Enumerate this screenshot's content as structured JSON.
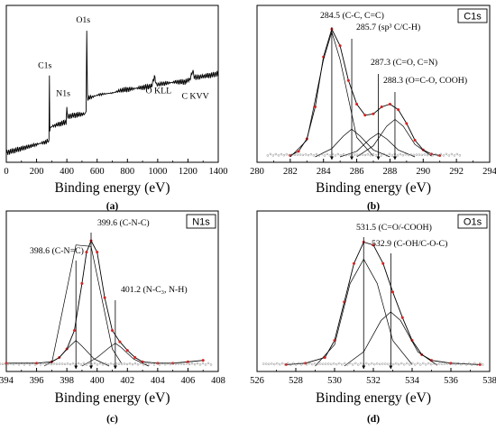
{
  "chart_data": [
    {
      "type": "line",
      "panel_label": "(a)",
      "xlabel": "Binding energy (eV)",
      "xlim": [
        0,
        1400
      ],
      "xticks": [
        0,
        200,
        400,
        600,
        800,
        1000,
        1200,
        1400
      ],
      "ylim": [
        0,
        100
      ],
      "annotations": [
        {
          "text": "C1s",
          "x": 284.5,
          "y": 60
        },
        {
          "text": "N1s",
          "x": 399.6,
          "y": 40
        },
        {
          "text": "O1s",
          "x": 531.5,
          "y": 93
        },
        {
          "text": "O KLL",
          "x": 980,
          "y": 42
        },
        {
          "text": "C KVV",
          "x": 1230,
          "y": 38
        }
      ],
      "series": [
        {
          "values": [
            [
              0,
              3
            ],
            [
              100,
              6
            ],
            [
              200,
              9
            ],
            [
              270,
              11
            ],
            [
              282,
              12
            ],
            [
              284.5,
              58
            ],
            [
              287,
              20
            ],
            [
              300,
              22
            ],
            [
              360,
              24
            ],
            [
              395,
              25
            ],
            [
              399.6,
              36
            ],
            [
              403,
              29
            ],
            [
              450,
              30
            ],
            [
              520,
              31
            ],
            [
              527,
              33
            ],
            [
              531.5,
              90
            ],
            [
              536,
              42
            ],
            [
              560,
              43
            ],
            [
              620,
              45
            ],
            [
              700,
              46
            ],
            [
              760,
              48
            ],
            [
              830,
              49
            ],
            [
              900,
              50
            ],
            [
              960,
              51
            ],
            [
              978,
              58
            ],
            [
              992,
              52
            ],
            [
              1050,
              53
            ],
            [
              1120,
              54
            ],
            [
              1180,
              54
            ],
            [
              1215,
              56
            ],
            [
              1230,
              62
            ],
            [
              1245,
              57
            ],
            [
              1300,
              58
            ],
            [
              1360,
              59
            ],
            [
              1400,
              60
            ]
          ]
        }
      ]
    },
    {
      "type": "line",
      "panel_label": "(b)",
      "badge": "C1s",
      "xlabel": "Binding energy (eV)",
      "xlim": [
        280,
        294
      ],
      "xticks": [
        280,
        282,
        284,
        286,
        288,
        290,
        292,
        294
      ],
      "ylim": [
        0,
        100
      ],
      "annotations": [
        {
          "text": "284.5 (C-C, C=C)",
          "x": 284.5
        },
        {
          "text": "285.7 (sp³ C/C-H)",
          "x": 285.7
        },
        {
          "text": "287.3 (C=O, C=N)",
          "x": 287.3
        },
        {
          "text": "288.3 (O=C-O, COOH)",
          "x": 288.3
        }
      ],
      "series": [
        {
          "values": [
            [
              282,
              1
            ],
            [
              282.5,
              4
            ],
            [
              283,
              13
            ],
            [
              283.5,
              36
            ],
            [
              284,
              72
            ],
            [
              284.5,
              92
            ],
            [
              285,
              80
            ],
            [
              285.5,
              55
            ],
            [
              286,
              38
            ],
            [
              286.5,
              30
            ],
            [
              287,
              31
            ],
            [
              287.5,
              36
            ],
            [
              288,
              38
            ],
            [
              288.5,
              34
            ],
            [
              289,
              24
            ],
            [
              289.5,
              12
            ],
            [
              290,
              5
            ],
            [
              290.5,
              2
            ],
            [
              291,
              1
            ]
          ]
        },
        {
          "values": [
            [
              282,
              0
            ],
            [
              283,
              12
            ],
            [
              284,
              70
            ],
            [
              284.5,
              90
            ],
            [
              285,
              70
            ],
            [
              286,
              14
            ],
            [
              287,
              0.5
            ]
          ]
        },
        {
          "values": [
            [
              283.5,
              0
            ],
            [
              284.5,
              6
            ],
            [
              285.2,
              15
            ],
            [
              285.7,
              20
            ],
            [
              286.2,
              15
            ],
            [
              287,
              5
            ],
            [
              288,
              0
            ]
          ]
        },
        {
          "values": [
            [
              285,
              0
            ],
            [
              286,
              4
            ],
            [
              286.8,
              13
            ],
            [
              287.3,
              17
            ],
            [
              287.8,
              13
            ],
            [
              288.5,
              5
            ],
            [
              289.5,
              0
            ]
          ]
        },
        {
          "values": [
            [
              286,
              0
            ],
            [
              287,
              8
            ],
            [
              287.8,
              22
            ],
            [
              288.3,
              27
            ],
            [
              288.8,
              22
            ],
            [
              289.5,
              9
            ],
            [
              290.5,
              0.5
            ]
          ]
        }
      ]
    },
    {
      "type": "line",
      "panel_label": "(c)",
      "badge": "N1s",
      "xlabel": "Binding energy (eV)",
      "xlim": [
        394,
        408
      ],
      "xticks": [
        394,
        396,
        398,
        400,
        402,
        404,
        406,
        408
      ],
      "ylim": [
        0,
        100
      ],
      "annotations": [
        {
          "text": "399.6 (C-N-C)",
          "x": 399.6
        },
        {
          "text": "398.6 (C-N=C)",
          "x": 398.6
        },
        {
          "text": "401.2 (N-C₃, N-H)",
          "x": 401.2
        }
      ],
      "series": [
        {
          "values": [
            [
              394,
              2
            ],
            [
              396,
              2
            ],
            [
              397,
              3
            ],
            [
              397.5,
              6
            ],
            [
              398,
              12
            ],
            [
              398.5,
              25
            ],
            [
              399,
              58
            ],
            [
              399.3,
              80
            ],
            [
              399.6,
              88
            ],
            [
              400,
              80
            ],
            [
              400.5,
              48
            ],
            [
              401,
              25
            ],
            [
              401.5,
              17
            ],
            [
              402,
              11
            ],
            [
              402.5,
              6
            ],
            [
              403,
              3
            ],
            [
              404,
              2
            ],
            [
              405,
              2
            ],
            [
              406,
              3
            ],
            [
              407,
              4
            ]
          ]
        },
        {
          "values": [
            [
              397,
              2
            ],
            [
              398.6,
              85
            ],
            [
              399.6,
              84
            ],
            [
              401,
              12
            ],
            [
              401.6,
              2
            ]
          ]
        },
        {
          "values": [
            [
              396.5,
              0
            ],
            [
              397.5,
              6
            ],
            [
              398.2,
              14
            ],
            [
              398.6,
              18
            ],
            [
              399,
              14
            ],
            [
              399.8,
              5
            ],
            [
              400.8,
              0
            ]
          ]
        },
        {
          "values": [
            [
              399,
              0
            ],
            [
              400,
              6
            ],
            [
              400.8,
              13
            ],
            [
              401.2,
              16
            ],
            [
              401.6,
              13
            ],
            [
              402.4,
              5
            ],
            [
              403.4,
              0
            ]
          ]
        }
      ]
    },
    {
      "type": "line",
      "panel_label": "(d)",
      "badge": "O1s",
      "xlabel": "Binding energy (eV)",
      "xlim": [
        526,
        538
      ],
      "xticks": [
        526,
        528,
        530,
        532,
        534,
        536,
        538
      ],
      "ylim": [
        0,
        100
      ],
      "annotations": [
        {
          "text": "531.5 (C=O/-COOH)",
          "x": 531.5
        },
        {
          "text": "532.9 (C-OH/C-O-C)",
          "x": 532.9
        }
      ],
      "series": [
        {
          "values": [
            [
              527.5,
              1
            ],
            [
              528.5,
              2
            ],
            [
              529.5,
              6
            ],
            [
              530,
              18
            ],
            [
              530.5,
              45
            ],
            [
              531,
              72
            ],
            [
              531.5,
              87
            ],
            [
              532,
              85
            ],
            [
              532.5,
              72
            ],
            [
              533,
              52
            ],
            [
              533.5,
              34
            ],
            [
              534,
              18
            ],
            [
              534.5,
              8
            ],
            [
              535,
              4
            ],
            [
              536,
              2
            ],
            [
              537.5,
              1
            ]
          ]
        },
        {
          "values": [
            [
              529,
              0
            ],
            [
              530,
              15
            ],
            [
              530.8,
              58
            ],
            [
              531.5,
              75
            ],
            [
              532.2,
              58
            ],
            [
              533,
              18
            ],
            [
              534,
              1
            ]
          ]
        },
        {
          "values": [
            [
              530.5,
              0
            ],
            [
              531.5,
              10
            ],
            [
              532.4,
              32
            ],
            [
              532.9,
              38
            ],
            [
              533.4,
              32
            ],
            [
              534.3,
              10
            ],
            [
              535.3,
              0.5
            ]
          ]
        }
      ]
    }
  ]
}
